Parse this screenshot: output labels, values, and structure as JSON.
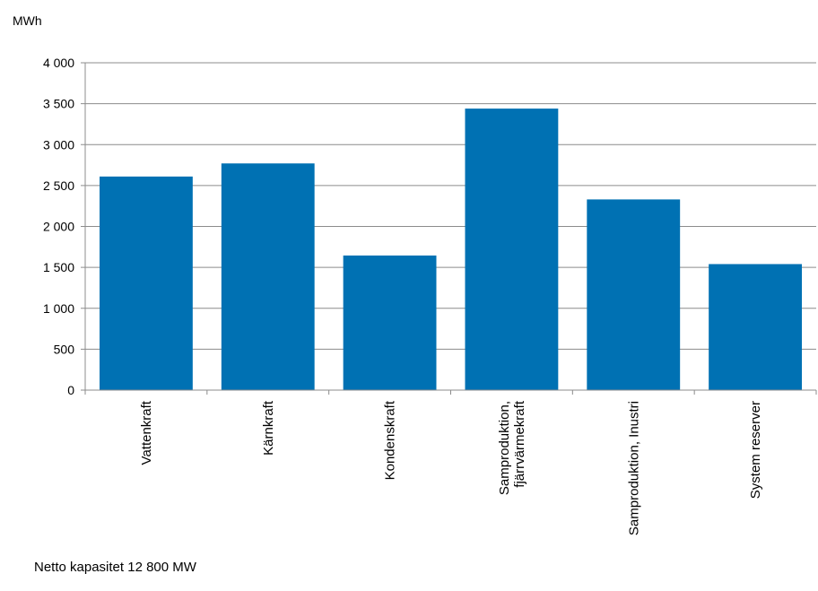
{
  "chart_data": {
    "type": "bar",
    "ylabel": "MWh",
    "categories": [
      [
        "Vattenkraft"
      ],
      [
        "Kärnkraft"
      ],
      [
        "Kondenskraft"
      ],
      [
        "Samproduktion,",
        "fjärrvärmekraft"
      ],
      [
        "Samproduktion, Inustri"
      ],
      [
        "System reserver"
      ]
    ],
    "values": [
      2610,
      2770,
      1645,
      3440,
      2330,
      1540
    ],
    "ylim": [
      0,
      4000
    ],
    "yticks": [
      0,
      500,
      1000,
      1500,
      2000,
      2500,
      3000,
      3500,
      4000
    ],
    "ytick_labels": [
      "0",
      "500",
      "1 000",
      "1 500",
      "2 000",
      "2 500",
      "3 000",
      "3 500",
      "4 000"
    ],
    "grid": true,
    "legend": "none",
    "bar_color": "#0071b3",
    "grid_color": "#8c8c8c",
    "axis_color": "#8c8c8c"
  },
  "footnote": "Netto kapasitet 12 800 MW"
}
